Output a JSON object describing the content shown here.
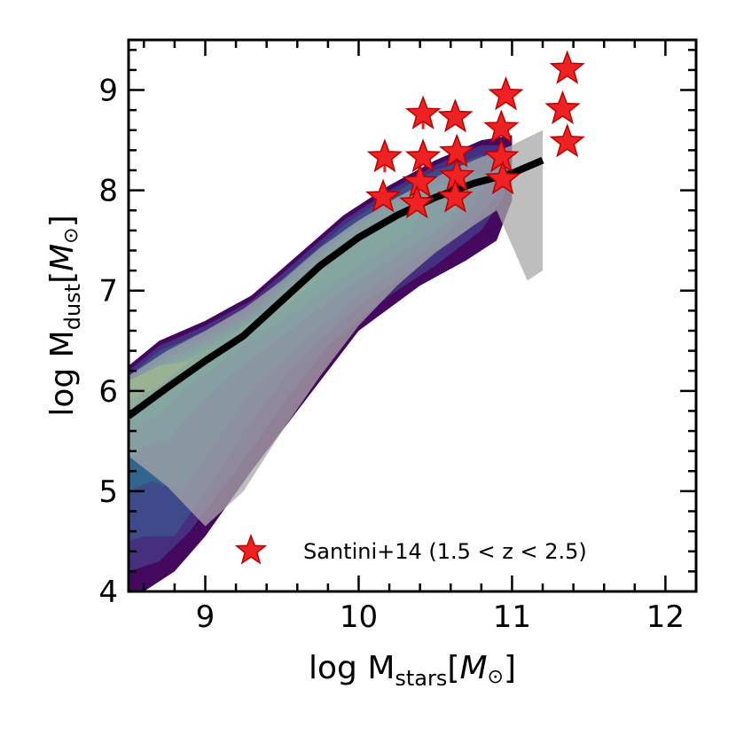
{
  "chart_data": {
    "type": "scatter",
    "xlabel": "log M_stars[M_sun]",
    "xlabel_parts": {
      "main": "log M",
      "sub": "stars",
      "open": "[",
      "unit": "M",
      "sun": "⊙",
      "close": "]"
    },
    "ylabel_parts": {
      "main": "log M",
      "sub": "dust",
      "open": "[",
      "unit": "M",
      "sun": "⊙",
      "close": "]"
    },
    "xlim": [
      8.5,
      12.2
    ],
    "ylim": [
      4.0,
      9.5
    ],
    "x_ticks": [
      9,
      10,
      11,
      12
    ],
    "x_tick_labels": [
      "9",
      "10",
      "11",
      "12"
    ],
    "y_ticks": [
      4,
      5,
      6,
      7,
      8,
      9
    ],
    "y_tick_labels": [
      "4",
      "5",
      "6",
      "7",
      "8",
      "9"
    ],
    "x_minor_step": 0.2,
    "y_minor_step": 0.2,
    "colors": {
      "stars": "#ee2222",
      "star_edge": "#bb0000",
      "median_line": "#000000",
      "shade": "#a8a8a8",
      "contours": [
        "#44095e",
        "#462f7e",
        "#3e4a89",
        "#31658e",
        "#277f8e",
        "#1f9a8a",
        "#34b679",
        "#6dcd59"
      ]
    },
    "contours": [
      {
        "level": 1,
        "polygon": [
          [
            8.5,
            4.0
          ],
          [
            8.5,
            6.25
          ],
          [
            8.7,
            6.5
          ],
          [
            9.0,
            6.7
          ],
          [
            9.3,
            6.95
          ],
          [
            9.6,
            7.35
          ],
          [
            9.9,
            7.75
          ],
          [
            10.2,
            8.05
          ],
          [
            10.5,
            8.3
          ],
          [
            10.8,
            8.5
          ],
          [
            11.0,
            8.55
          ],
          [
            11.0,
            7.9
          ],
          [
            10.9,
            7.5
          ],
          [
            10.7,
            7.3
          ],
          [
            10.4,
            7.05
          ],
          [
            10.0,
            6.6
          ],
          [
            9.7,
            6.0
          ],
          [
            9.3,
            5.2
          ],
          [
            9.0,
            4.55
          ],
          [
            8.8,
            4.2
          ],
          [
            8.6,
            4.0
          ]
        ]
      },
      {
        "level": 2,
        "polygon": [
          [
            8.5,
            4.2
          ],
          [
            8.5,
            6.2
          ],
          [
            8.7,
            6.45
          ],
          [
            9.0,
            6.65
          ],
          [
            9.3,
            6.9
          ],
          [
            9.6,
            7.3
          ],
          [
            9.9,
            7.7
          ],
          [
            10.2,
            8.0
          ],
          [
            10.5,
            8.25
          ],
          [
            10.8,
            8.45
          ],
          [
            10.95,
            8.45
          ],
          [
            10.95,
            7.95
          ],
          [
            10.8,
            7.6
          ],
          [
            10.5,
            7.25
          ],
          [
            10.2,
            6.95
          ],
          [
            9.8,
            6.45
          ],
          [
            9.5,
            5.85
          ],
          [
            9.2,
            5.2
          ],
          [
            8.9,
            4.6
          ],
          [
            8.7,
            4.3
          ]
        ]
      },
      {
        "level": 3,
        "polygon": [
          [
            8.5,
            4.5
          ],
          [
            8.5,
            6.15
          ],
          [
            8.7,
            6.4
          ],
          [
            9.0,
            6.6
          ],
          [
            9.3,
            6.85
          ],
          [
            9.6,
            7.25
          ],
          [
            9.9,
            7.65
          ],
          [
            10.2,
            7.95
          ],
          [
            10.5,
            8.2
          ],
          [
            10.8,
            8.35
          ],
          [
            10.9,
            8.3
          ],
          [
            10.9,
            7.95
          ],
          [
            10.7,
            7.6
          ],
          [
            10.4,
            7.25
          ],
          [
            10.0,
            6.85
          ],
          [
            9.6,
            6.3
          ],
          [
            9.3,
            5.7
          ],
          [
            9.0,
            5.0
          ],
          [
            8.8,
            4.55
          ],
          [
            8.6,
            4.55
          ]
        ]
      },
      {
        "level": 4,
        "polygon": [
          [
            8.5,
            5.0
          ],
          [
            8.5,
            6.1
          ],
          [
            8.7,
            6.35
          ],
          [
            9.0,
            6.55
          ],
          [
            9.3,
            6.8
          ],
          [
            9.6,
            7.2
          ],
          [
            9.9,
            7.6
          ],
          [
            10.2,
            7.9
          ],
          [
            10.5,
            8.1
          ],
          [
            10.75,
            8.2
          ],
          [
            10.85,
            8.1
          ],
          [
            10.7,
            7.75
          ],
          [
            10.4,
            7.35
          ],
          [
            10.0,
            6.95
          ],
          [
            9.6,
            6.45
          ],
          [
            9.3,
            6.0
          ],
          [
            9.05,
            5.45
          ],
          [
            8.85,
            5.0
          ],
          [
            8.65,
            5.1
          ]
        ]
      },
      {
        "level": 5,
        "polygon": [
          [
            8.5,
            5.3
          ],
          [
            8.5,
            6.05
          ],
          [
            8.7,
            6.3
          ],
          [
            9.0,
            6.5
          ],
          [
            9.3,
            6.75
          ],
          [
            9.6,
            7.15
          ],
          [
            9.9,
            7.55
          ],
          [
            10.2,
            7.85
          ],
          [
            10.5,
            8.05
          ],
          [
            10.7,
            8.05
          ],
          [
            10.6,
            7.7
          ],
          [
            10.3,
            7.4
          ],
          [
            9.9,
            7.0
          ],
          [
            9.5,
            6.55
          ],
          [
            9.2,
            6.2
          ],
          [
            8.95,
            5.85
          ],
          [
            8.75,
            5.5
          ],
          [
            8.6,
            5.45
          ]
        ]
      },
      {
        "level": 6,
        "polygon": [
          [
            8.5,
            5.6
          ],
          [
            8.5,
            6.0
          ],
          [
            8.7,
            6.25
          ],
          [
            9.0,
            6.45
          ],
          [
            9.3,
            6.7
          ],
          [
            9.6,
            7.1
          ],
          [
            9.9,
            7.45
          ],
          [
            10.2,
            7.75
          ],
          [
            10.45,
            7.9
          ],
          [
            10.35,
            7.6
          ],
          [
            10.0,
            7.25
          ],
          [
            9.6,
            6.8
          ],
          [
            9.2,
            6.4
          ],
          [
            8.9,
            6.05
          ],
          [
            8.7,
            5.75
          ]
        ]
      },
      {
        "level": 7,
        "polygon": [
          [
            8.5,
            5.8
          ],
          [
            8.5,
            6.0
          ],
          [
            8.7,
            6.2
          ],
          [
            9.0,
            6.4
          ],
          [
            9.3,
            6.6
          ],
          [
            9.6,
            6.95
          ],
          [
            9.8,
            7.2
          ],
          [
            9.6,
            7.0
          ],
          [
            9.3,
            6.7
          ],
          [
            9.0,
            6.35
          ],
          [
            8.75,
            6.0
          ]
        ]
      },
      {
        "level": 8,
        "polygon": [
          [
            8.5,
            5.9
          ],
          [
            8.5,
            6.1
          ],
          [
            8.7,
            6.25
          ],
          [
            8.9,
            6.3
          ],
          [
            8.7,
            6.05
          ]
        ]
      }
    ],
    "median": {
      "x": [
        8.5,
        8.75,
        9.0,
        9.25,
        9.5,
        9.75,
        10.0,
        10.25,
        10.5,
        10.75,
        11.0,
        11.2
      ],
      "y": [
        5.75,
        6.03,
        6.3,
        6.55,
        6.9,
        7.25,
        7.53,
        7.75,
        7.93,
        8.07,
        8.17,
        8.3
      ]
    },
    "scatter_band": {
      "upper": [
        [
          8.5,
          6.15
        ],
        [
          8.75,
          6.4
        ],
        [
          9.0,
          6.6
        ],
        [
          9.25,
          6.82
        ],
        [
          9.5,
          7.1
        ],
        [
          9.75,
          7.43
        ],
        [
          10.0,
          7.7
        ],
        [
          10.25,
          7.93
        ],
        [
          10.5,
          8.13
        ],
        [
          10.75,
          8.3
        ],
        [
          11.0,
          8.45
        ],
        [
          11.2,
          8.6
        ]
      ],
      "lower": [
        [
          11.2,
          7.2
        ],
        [
          11.1,
          7.1
        ],
        [
          11.0,
          7.45
        ],
        [
          10.9,
          7.8
        ],
        [
          10.75,
          7.65
        ],
        [
          10.5,
          7.38
        ],
        [
          10.25,
          7.05
        ],
        [
          10.0,
          6.65
        ],
        [
          9.75,
          6.15
        ],
        [
          9.5,
          5.6
        ],
        [
          9.25,
          5.0
        ],
        [
          9.0,
          4.65
        ],
        [
          8.75,
          5.05
        ],
        [
          8.5,
          5.35
        ]
      ]
    },
    "observations": {
      "name": "Santini+14 (1.5 < z < 2.5)",
      "legend_label": "Santini+14 (1.5 < z < 2.5)",
      "legend_position": "lower-right",
      "x": [
        10.17,
        10.16,
        10.42,
        10.42,
        10.4,
        10.38,
        10.63,
        10.64,
        10.64,
        10.63,
        10.96,
        10.93,
        10.93,
        10.94,
        11.36,
        11.33,
        11.36
      ],
      "y": [
        8.33,
        7.93,
        8.76,
        8.33,
        8.08,
        7.87,
        8.73,
        8.38,
        8.14,
        7.93,
        8.95,
        8.62,
        8.33,
        8.11,
        9.21,
        8.81,
        8.48
      ],
      "yerr": [
        0.15,
        0.05,
        0.15,
        0.05,
        0.05,
        0.05,
        0.05,
        0.05,
        0.05,
        0.05,
        0.05,
        0.05,
        0.05,
        0.05,
        0.05,
        0.05,
        0.05
      ]
    }
  }
}
